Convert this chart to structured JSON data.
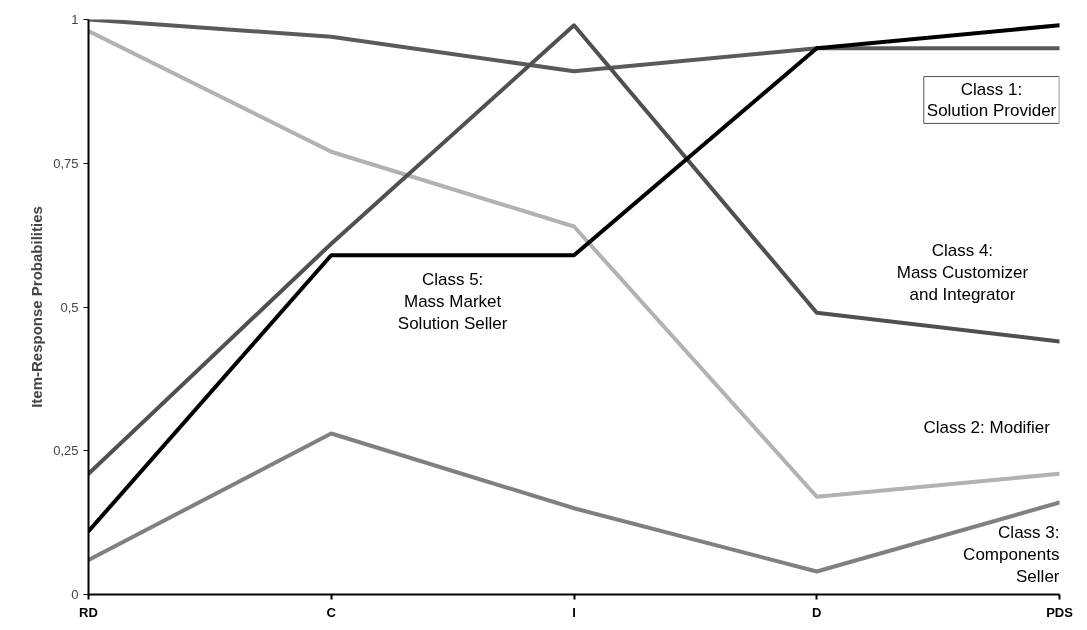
{
  "chart_data": {
    "type": "line",
    "ylabel": "Item-Response Probabilities",
    "categories": [
      "RD",
      "C",
      "I",
      "D",
      "PDS"
    ],
    "ylim": [
      0,
      1
    ],
    "yticks": [
      0,
      {
        "value": 0.25,
        "label": "0,25"
      },
      {
        "value": 0.5,
        "label": "0,5"
      },
      {
        "value": 0.75,
        "label": "0,75"
      },
      1
    ],
    "grid": false,
    "marker": "none",
    "line_style": "solid",
    "series": [
      {
        "name": "Class 1:\nSolution Provider",
        "color": "#5a5a5a",
        "values": [
          1.0,
          0.97,
          0.91,
          0.95,
          0.95
        ]
      },
      {
        "name": "Class 2: Modifier",
        "color": "#b2b2b2",
        "values": [
          0.98,
          0.77,
          0.64,
          0.17,
          0.21
        ]
      },
      {
        "name": "Class 3:\nComponents\nSeller",
        "color": "#808080",
        "values": [
          0.06,
          0.28,
          0.15,
          0.04,
          0.16
        ]
      },
      {
        "name": "Class 4:\nMass Customizer\nand Integrator",
        "color": "#505050",
        "values": [
          0.21,
          0.61,
          0.99,
          0.49,
          0.44
        ]
      },
      {
        "name": "Class 5:\nMass Market\nSolution Seller",
        "color": "#000000",
        "values": [
          0.11,
          0.59,
          0.59,
          0.95,
          0.99
        ]
      }
    ]
  }
}
